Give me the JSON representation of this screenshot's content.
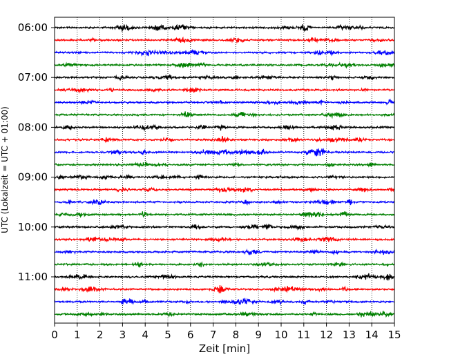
{
  "chart_data": {
    "type": "line",
    "title": "",
    "xlabel": "Zeit  [min]",
    "ylabel": "UTC (Lokalzeit = UTC + 01:00)",
    "xlim": [
      0,
      15
    ],
    "xticks": [
      "0",
      "1",
      "2",
      "3",
      "4",
      "5",
      "6",
      "7",
      "8",
      "9",
      "10",
      "11",
      "12",
      "13",
      "14",
      "15"
    ],
    "yticks": [
      "06:00",
      "07:00",
      "08:00",
      "09:00",
      "10:00",
      "11:00"
    ],
    "grid": "vertical dotted lines at each minute",
    "trace_interval_minutes": 15,
    "trace_count": 24,
    "trace_start": "06:00",
    "trace_colors": [
      "#000000",
      "#ff0000",
      "#0000ff",
      "#008000"
    ],
    "note": ""
  }
}
